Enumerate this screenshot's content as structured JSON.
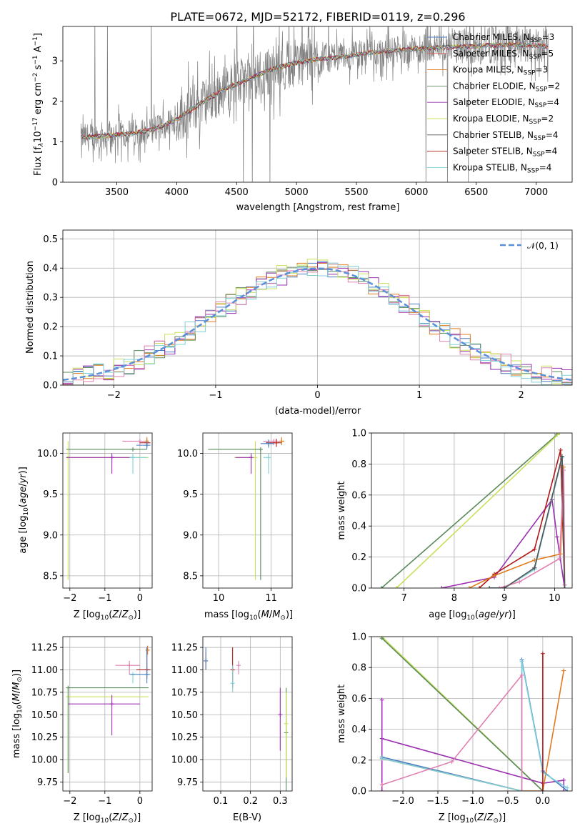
{
  "figure_title": "PLATE=0672, MJD=52172, FIBERID=0119, z=0.296",
  "chart_data": [
    {
      "id": "spectrum",
      "type": "line",
      "xlabel": "wavelength [Angstrom, rest frame]",
      "ylabel_main": "Flux [",
      "ylabel_parts": [
        "Flux [f",
        "λ",
        "10",
        "−17",
        " erg cm",
        "−2",
        " s",
        "−1",
        " A",
        "−1",
        "]"
      ],
      "xlim": [
        3050,
        7300
      ],
      "ylim": [
        0,
        3.85
      ],
      "xticks": [
        3500,
        4000,
        4500,
        5000,
        5500,
        6000,
        6500,
        7000
      ],
      "yticks": [
        0,
        1,
        2,
        3
      ],
      "legend_placement": "right",
      "legend": [
        {
          "main": "Chabrier MILES, N",
          "sub": "SSP",
          "tail": "=3",
          "color": "#4b7fc4"
        },
        {
          "main": "Salpeter MILES, N",
          "sub": "SSP",
          "tail": "=5",
          "color": "#e05a5a"
        },
        {
          "main": "Kroupa MILES, N",
          "sub": "SSP",
          "tail": "=3",
          "color": "#e07b20"
        },
        {
          "main": "Chabrier ELODIE, N",
          "sub": "SSP",
          "tail": "=2",
          "color": "#5a8a5a"
        },
        {
          "main": "Salpeter ELODIE, N",
          "sub": "SSP",
          "tail": "=4",
          "color": "#9b30b0"
        },
        {
          "main": "Kroupa ELODIE, N",
          "sub": "SSP",
          "tail": "=2",
          "color": "#c8e05a"
        },
        {
          "main": "Chabrier STELIB, N",
          "sub": "SSP",
          "tail": "=4",
          "color": "#555555"
        },
        {
          "main": "Salpeter STELIB, N",
          "sub": "SSP",
          "tail": "=4",
          "color": "#b01818"
        },
        {
          "main": "Kroupa STELIB, N",
          "sub": "SSP",
          "tail": "=4",
          "color": "#7fd0d8"
        }
      ],
      "continuum": {
        "x": [
          3200,
          3400,
          3600,
          3800,
          4000,
          4200,
          4400,
          4600,
          4800,
          5000,
          5200,
          5400,
          5600,
          5800,
          6000,
          6200,
          6400,
          6600,
          6800,
          7000,
          7100
        ],
        "y": [
          1.1,
          1.15,
          1.2,
          1.3,
          1.55,
          1.95,
          2.3,
          2.55,
          2.8,
          2.95,
          3.05,
          3.1,
          3.2,
          3.25,
          3.3,
          3.33,
          3.35,
          3.38,
          3.4,
          3.38,
          3.35
        ]
      },
      "data_color": "#808080",
      "model_color": "#7fd0d8"
    },
    {
      "id": "residuals",
      "type": "histogram",
      "xlabel": "(data-model)/error",
      "ylabel": "Normed distribution",
      "xlim": [
        -2.5,
        2.5
      ],
      "ylim": [
        0,
        0.53
      ],
      "xticks": [
        -2,
        -1,
        0,
        1,
        2
      ],
      "yticks": [
        0.0,
        0.1,
        0.2,
        0.3,
        0.4,
        0.5
      ],
      "legend": "N(0, 1)",
      "legend_placement": "top-right",
      "gauss_color": "#5b8fd8",
      "series_colors": [
        "#4b7fc4",
        "#e07b20",
        "#5a8a5a",
        "#9b30b0",
        "#c8e05a",
        "#e080b0",
        "#7fd0d8"
      ]
    },
    {
      "id": "age-vs-Z",
      "type": "scatter",
      "xlabel": "Z [log10(Z/Z⊙)]",
      "ylabel": "age  [log10(age/yr)]",
      "xlim": [
        -2.2,
        0.35
      ],
      "ylim": [
        8.35,
        10.25
      ],
      "xticks": [
        -2,
        -1,
        0
      ],
      "yticks": [
        8.5,
        9.0,
        9.5,
        10.0
      ],
      "points": [
        {
          "x": -2.05,
          "y": 9.95,
          "xerr": [
            0,
            2.3
          ],
          "yerr": [
            1.5,
            0.2
          ],
          "color": "#c8e05a"
        },
        {
          "x": -0.8,
          "y": 9.95,
          "xerr": [
            1.3,
            0.6
          ],
          "yerr": [
            0.2,
            0.05
          ],
          "color": "#9b30b0"
        },
        {
          "x": -0.2,
          "y": 9.95,
          "xerr": [
            0.1,
            0.4
          ],
          "yerr": [
            0.2,
            0.05
          ],
          "color": "#7fd0d8"
        },
        {
          "x": -0.2,
          "y": 10.05,
          "xerr": [
            1.9,
            0.4
          ],
          "yerr": [
            0,
            0
          ],
          "color": "#5a8a5a"
        },
        {
          "x": 0.0,
          "y": 10.15,
          "xerr": [
            0.5,
            0.2
          ],
          "yerr": [
            0.05,
            0
          ],
          "color": "#e080b0"
        },
        {
          "x": 0.2,
          "y": 10.13,
          "xerr": [
            0.2,
            0.1
          ],
          "yerr": [
            0.05,
            0.05
          ],
          "color": "#b01818"
        },
        {
          "x": 0.2,
          "y": 10.15,
          "xerr": [
            0.05,
            0.05
          ],
          "yerr": [
            0.05,
            0.05
          ],
          "color": "#e07b20"
        },
        {
          "x": 0.2,
          "y": 10.1,
          "xerr": [
            0.3,
            0.1
          ],
          "yerr": [
            0.05,
            0.05
          ],
          "color": "#4b7fc4"
        }
      ]
    },
    {
      "id": "age-vs-mass",
      "type": "scatter",
      "xlabel": "mass [log10(M/M⊙)]",
      "xlim": [
        9.7,
        11.4
      ],
      "ylim": [
        8.35,
        10.25
      ],
      "xticks": [
        10,
        11
      ],
      "yticks": [
        8.5,
        9.0,
        9.5,
        10.0
      ],
      "points": [
        {
          "x": 10.7,
          "y": 9.95,
          "xerr": [
            0.4,
            0
          ],
          "yerr": [
            1.5,
            0.2
          ],
          "color": "#c8e05a"
        },
        {
          "x": 10.8,
          "y": 10.05,
          "xerr": [
            1.0,
            0
          ],
          "yerr": [
            1.6,
            0
          ],
          "color": "#5a8a5a"
        },
        {
          "x": 10.62,
          "y": 9.95,
          "xerr": [
            0.3,
            0
          ],
          "yerr": [
            0.2,
            0.05
          ],
          "color": "#9b30b0"
        },
        {
          "x": 10.95,
          "y": 9.95,
          "xerr": [
            0.1,
            0
          ],
          "yerr": [
            0.2,
            0.05
          ],
          "color": "#7fd0d8"
        },
        {
          "x": 11.05,
          "y": 10.15,
          "xerr": [
            0.2,
            0.1
          ],
          "yerr": [
            0.05,
            0
          ],
          "color": "#e080b0"
        },
        {
          "x": 11.1,
          "y": 10.13,
          "xerr": [
            0.2,
            0.1
          ],
          "yerr": [
            0.05,
            0.05
          ],
          "color": "#b01818"
        },
        {
          "x": 11.2,
          "y": 10.15,
          "xerr": [
            0.05,
            0.05
          ],
          "yerr": [
            0.05,
            0.05
          ],
          "color": "#e07b20"
        },
        {
          "x": 10.95,
          "y": 10.12,
          "xerr": [
            0.15,
            0.1
          ],
          "yerr": [
            0.05,
            0.05
          ],
          "color": "#4b7fc4"
        }
      ]
    },
    {
      "id": "weight-vs-age",
      "type": "line",
      "xlabel": "age  [log10(age/yr)]",
      "ylabel": "mass weight",
      "xlim": [
        6.35,
        10.35
      ],
      "ylim": [
        0,
        1.0
      ],
      "xticks": [
        7,
        8,
        9,
        10
      ],
      "yticks": [
        0.0,
        0.2,
        0.4,
        0.6,
        0.8,
        1.0
      ],
      "series": [
        {
          "color": "#5a8a5a",
          "x": [
            6.55,
            10.05
          ],
          "y": [
            0.0,
            0.99
          ]
        },
        {
          "color": "#c8e05a",
          "x": [
            6.85,
            10.1
          ],
          "y": [
            0.0,
            1.0
          ]
        },
        {
          "color": "#9b30b0",
          "x": [
            7.75,
            8.8,
            9.95,
            10.05,
            10.2
          ],
          "y": [
            0.0,
            0.07,
            0.57,
            0.33,
            0.0
          ]
        },
        {
          "color": "#b01818",
          "x": [
            8.5,
            8.8,
            9.6,
            10.12,
            10.2
          ],
          "y": [
            0.0,
            0.09,
            0.25,
            0.89,
            0.0
          ]
        },
        {
          "color": "#e07b20",
          "x": [
            8.3,
            8.8,
            9.6,
            10.12,
            10.18,
            10.2
          ],
          "y": [
            0.0,
            0.08,
            0.18,
            0.22,
            0.78,
            0.0
          ]
        },
        {
          "color": "#4b7fc4",
          "x": [
            8.7,
            9.0,
            9.6,
            10.15,
            10.2
          ],
          "y": [
            0.0,
            0.0,
            0.13,
            0.85,
            0.0
          ]
        },
        {
          "color": "#7fd0d8",
          "x": [
            8.7,
            9.0,
            9.6,
            10.15,
            10.2
          ],
          "y": [
            0.0,
            0.0,
            0.12,
            0.84,
            0.02
          ]
        },
        {
          "color": "#e080b0",
          "x": [
            8.9,
            9.3,
            10.1,
            10.18,
            10.2
          ],
          "y": [
            0.0,
            0.04,
            0.19,
            0.76,
            0.02
          ]
        },
        {
          "color": "#555555",
          "x": [
            8.7,
            9.0,
            9.6,
            10.15,
            10.2
          ],
          "y": [
            0.0,
            0.0,
            0.13,
            0.85,
            0.0
          ]
        }
      ]
    },
    {
      "id": "mass-vs-Z",
      "type": "scatter",
      "xlabel": "Z [log10(Z/Z⊙)]",
      "ylabel": "mass [log10(M/M⊙)]",
      "xlim": [
        -2.2,
        0.35
      ],
      "ylim": [
        9.65,
        11.37
      ],
      "xticks": [
        -2,
        -1,
        0
      ],
      "yticks": [
        9.75,
        10.0,
        10.25,
        10.5,
        10.75,
        11.0,
        11.25
      ],
      "points": [
        {
          "x": -2.05,
          "y": 10.7,
          "xerr": [
            0,
            2.3
          ],
          "yerr": [
            0.85,
            0.1
          ],
          "color": "#c8e05a"
        },
        {
          "x": -2.05,
          "y": 10.8,
          "xerr": [
            0,
            2.3
          ],
          "yerr": [
            0.95,
            0
          ],
          "color": "#5a8a5a"
        },
        {
          "x": -0.8,
          "y": 10.62,
          "xerr": [
            1.25,
            0.8
          ],
          "yerr": [
            0.35,
            0.1
          ],
          "color": "#9b30b0"
        },
        {
          "x": -0.2,
          "y": 10.95,
          "xerr": [
            0.1,
            0.4
          ],
          "yerr": [
            0.1,
            0
          ],
          "color": "#7fd0d8"
        },
        {
          "x": -0.3,
          "y": 11.05,
          "xerr": [
            0.4,
            0.3
          ],
          "yerr": [
            0.1,
            0.05
          ],
          "color": "#e080b0"
        },
        {
          "x": 0.2,
          "y": 11.0,
          "xerr": [
            0.3,
            0.1
          ],
          "yerr": [
            0.1,
            0.25
          ],
          "color": "#b01818"
        },
        {
          "x": 0.22,
          "y": 11.22,
          "xerr": [
            0.05,
            0.05
          ],
          "yerr": [
            0.05,
            0.05
          ],
          "color": "#e07b20"
        },
        {
          "x": 0.2,
          "y": 10.95,
          "xerr": [
            0.5,
            0.1
          ],
          "yerr": [
            0.1,
            0.3
          ],
          "color": "#4b7fc4"
        }
      ]
    },
    {
      "id": "mass-vs-ebv",
      "type": "scatter",
      "xlabel": "E(B-V)",
      "xlim": [
        0.04,
        0.34
      ],
      "ylim": [
        9.65,
        11.37
      ],
      "xticks": [
        0.1,
        0.2,
        0.3
      ],
      "yticks": [
        9.75,
        10.0,
        10.25,
        10.5,
        10.75,
        11.0,
        11.25
      ],
      "points": [
        {
          "x": 0.05,
          "y": 11.1,
          "yerr": [
            0.1,
            0.1
          ],
          "color": "#e07b20"
        },
        {
          "x": 0.05,
          "y": 11.1,
          "yerr": [
            0.1,
            0.15
          ],
          "color": "#4b7fc4"
        },
        {
          "x": 0.14,
          "y": 11.0,
          "yerr": [
            0.2,
            0.25
          ],
          "color": "#b01818"
        },
        {
          "x": 0.14,
          "y": 10.85,
          "yerr": [
            0.1,
            0.2
          ],
          "color": "#7fd0d8"
        },
        {
          "x": 0.16,
          "y": 11.05,
          "yerr": [
            0.1,
            0.05
          ],
          "color": "#e080b0"
        },
        {
          "x": 0.3,
          "y": 10.5,
          "yerr": [
            0.4,
            0.3
          ],
          "color": "#9b30b0"
        },
        {
          "x": 0.32,
          "y": 10.3,
          "yerr": [
            0.65,
            0.5
          ],
          "color": "#5a8a5a"
        },
        {
          "x": 0.32,
          "y": 10.4,
          "yerr": [
            0.6,
            0.35
          ],
          "color": "#c8e05a"
        }
      ]
    },
    {
      "id": "weight-vs-Z",
      "type": "line",
      "xlabel": "Z [log10(Z/Z⊙)]",
      "ylabel": "mass weight",
      "xlim": [
        -2.45,
        0.42
      ],
      "ylim": [
        0,
        1.0
      ],
      "xticks": [
        -2.0,
        -1.5,
        -1.0,
        -0.5,
        0.0
      ],
      "yticks": [
        0.0,
        0.2,
        0.4,
        0.6,
        0.8,
        1.0
      ],
      "series": [
        {
          "color": "#c8e05a",
          "x": [
            -2.3,
            0.0
          ],
          "y": [
            1.0,
            0.0
          ]
        },
        {
          "color": "#5a8a5a",
          "x": [
            -2.3,
            0.0
          ],
          "y": [
            0.99,
            0.0
          ]
        },
        {
          "color": "#9b30b0",
          "x": [
            -2.3,
            -2.3,
            -2.3,
            0.0,
            0.3,
            0.3
          ],
          "y": [
            0.59,
            0.0,
            0.34,
            0.05,
            0.07,
            0.0
          ]
        },
        {
          "color": "#4b7fc4",
          "x": [
            -2.3,
            -0.3,
            -0.3,
            0.0,
            0.35
          ],
          "y": [
            0.22,
            0.0,
            0.85,
            0.13,
            0.0
          ]
        },
        {
          "color": "#e07b20",
          "x": [
            -2.3,
            -0.3,
            0.0,
            0.3
          ],
          "y": [
            0.21,
            0.0,
            0.0,
            0.78
          ]
        },
        {
          "color": "#7fd0d8",
          "x": [
            -2.3,
            -0.3,
            -0.3,
            0.0,
            0.35
          ],
          "y": [
            0.21,
            0.0,
            0.84,
            0.12,
            0.02
          ]
        },
        {
          "color": "#e080b0",
          "x": [
            -2.3,
            -1.3,
            -0.3,
            -0.3
          ],
          "y": [
            0.04,
            0.19,
            0.75,
            0.0
          ]
        },
        {
          "color": "#b01818",
          "x": [
            0.0,
            0.0
          ],
          "y": [
            0.0,
            0.89
          ]
        }
      ]
    }
  ]
}
